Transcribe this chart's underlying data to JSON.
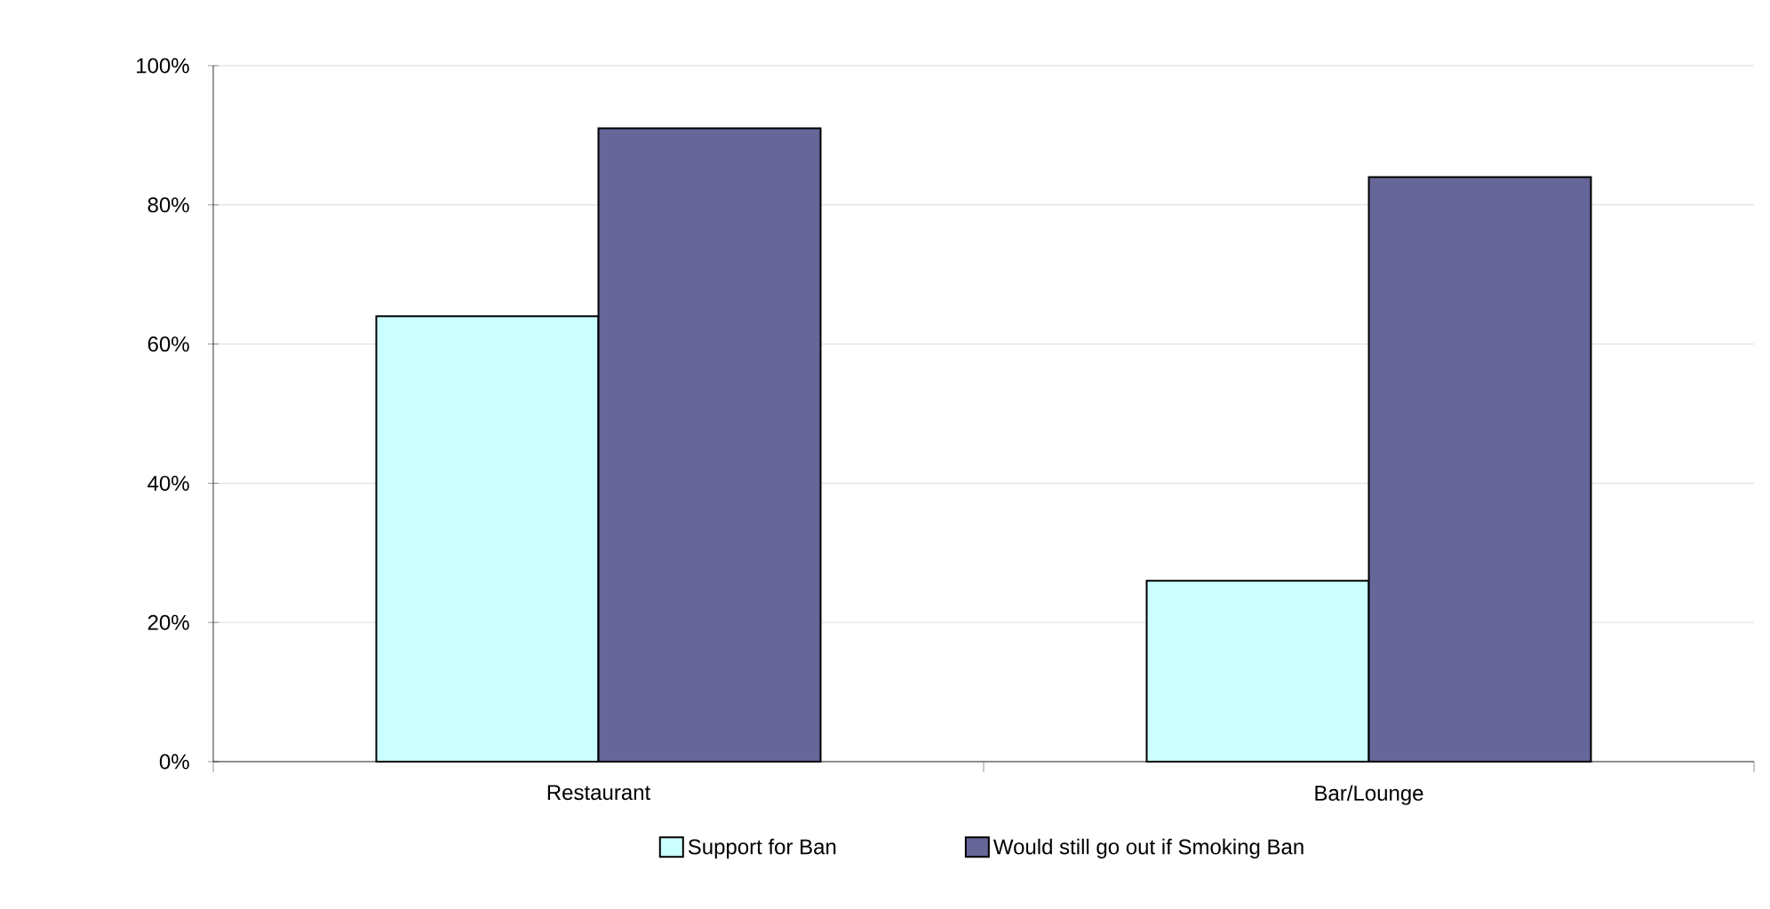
{
  "chart_data": {
    "type": "bar",
    "categories": [
      "Restaurant",
      "Bar/Lounge"
    ],
    "series": [
      {
        "name": "Support for Ban",
        "color": "#ccffff",
        "values": [
          64,
          26
        ]
      },
      {
        "name": "Would still go out if Smoking Ban",
        "color": "#666699",
        "values": [
          91,
          84
        ]
      }
    ],
    "ylim": [
      0,
      100
    ],
    "yticks": [
      {
        "value": 0,
        "label": "0%"
      },
      {
        "value": 20,
        "label": "20%"
      },
      {
        "value": 40,
        "label": "40%"
      },
      {
        "value": 60,
        "label": "60%"
      },
      {
        "value": 80,
        "label": "80%"
      },
      {
        "value": 100,
        "label": "100%"
      }
    ],
    "grid": "y",
    "legend": "bottom"
  }
}
